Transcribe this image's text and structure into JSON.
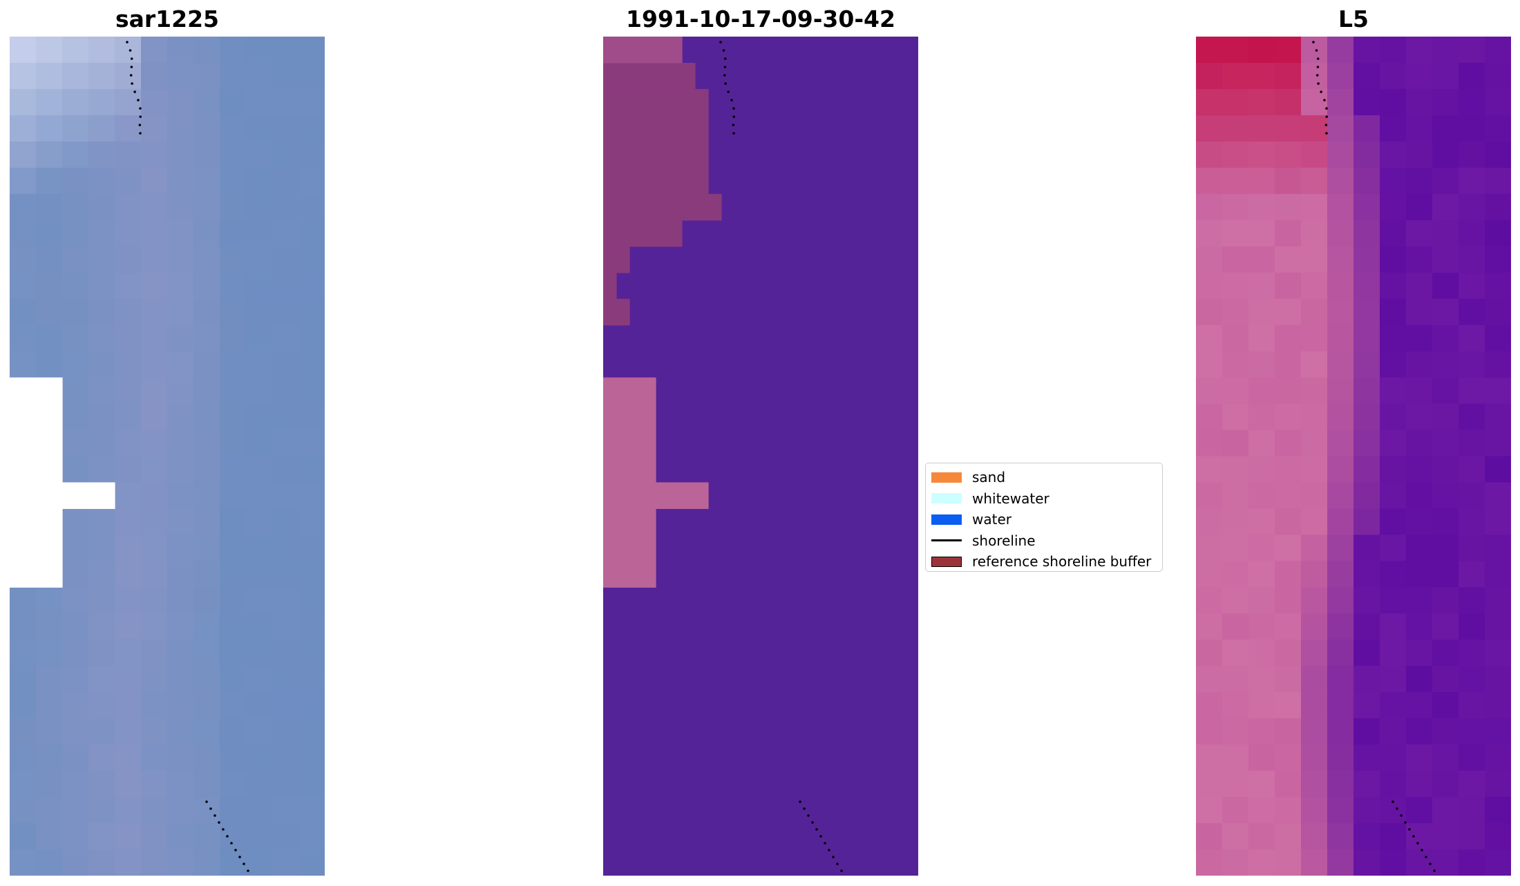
{
  "panels": [
    {
      "id": "left",
      "title": "sar1225",
      "colormap": "rgb"
    },
    {
      "id": "mid",
      "title": "1991-10-17-09-30-42",
      "colormap": "classified"
    },
    {
      "id": "right",
      "title": "L5",
      "colormap": "mndwi"
    }
  ],
  "legend": {
    "items": [
      {
        "label": "sand",
        "color": "#f5883a",
        "kind": "patch"
      },
      {
        "label": "whitewater",
        "color": "#ccffff",
        "kind": "patch"
      },
      {
        "label": "water",
        "color": "#0a5ef0",
        "kind": "patch"
      },
      {
        "label": "shoreline",
        "color": "#000000",
        "kind": "line"
      },
      {
        "label": "reference shoreline buffer",
        "color": "#9c3339",
        "kind": "patch"
      }
    ]
  },
  "colors": {
    "classified_background": "#552398",
    "classified_buffer": "#8a3b7c",
    "classified_pink": "#bb6498",
    "rgb_base": "#7390c2",
    "mndwi_low": "#5a0aa0",
    "mndwi_high": "#c2003a"
  }
}
